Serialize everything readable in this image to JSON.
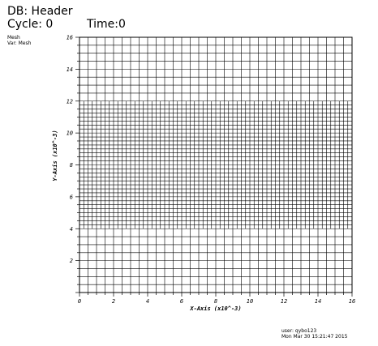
{
  "header": {
    "db": "DB: Header",
    "cycle": "Cycle: 0",
    "time": "Time:0"
  },
  "legend": {
    "plot": "Mesh",
    "variable": "Var: Mesh"
  },
  "footer": {
    "user": "user: qybo123",
    "date": "Mon Mar 30 15:21:47 2015"
  },
  "chart_data": {
    "type": "mesh",
    "xlabel": "X-Axis (x10^-3)",
    "ylabel": "Y-Axis (x10^-3)",
    "xlim": [
      0,
      16
    ],
    "ylim": [
      0,
      16
    ],
    "xticks": [
      "0",
      "2",
      "4",
      "6",
      "8",
      "10",
      "12",
      "14",
      "16"
    ],
    "yticks": [
      "2",
      "4",
      "6",
      "8",
      "10",
      "12",
      "14",
      "16"
    ],
    "coarse_spacing": 0.5,
    "fine_spacing": 0.25,
    "fine_region_y": [
      4,
      12
    ],
    "grid_color": "#000000"
  }
}
